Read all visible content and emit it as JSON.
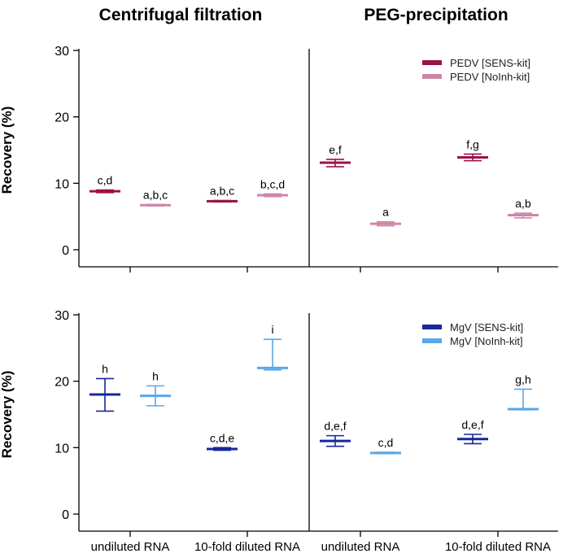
{
  "chart_data": {
    "type": "scatter",
    "column_titles": [
      "Centrifugal filtration",
      "PEG-precipitation"
    ],
    "categories": [
      "undiluted RNA",
      "10-fold diluted RNA",
      "undiluted RNA",
      "10-fold diluted RNA"
    ],
    "panels": [
      {
        "ylabel": "Recovery (%)",
        "ylim": [
          0,
          30
        ],
        "yticks": [
          "0",
          "10",
          "20",
          "30"
        ],
        "series": [
          {
            "name": "PEDV [SENS-kit]",
            "color": "#9a1249",
            "mean": [
              8.8,
              7.3,
              13.1,
              13.9
            ],
            "low": [
              8.6,
              7.2,
              12.5,
              13.4
            ],
            "high": [
              9.0,
              7.4,
              13.6,
              14.4
            ],
            "labels": [
              "c,d",
              "a,b,c",
              "e,f",
              "f,g"
            ]
          },
          {
            "name": "PEDV [NoInh-kit]",
            "color": "#cc86a8",
            "mean": [
              6.7,
              8.2,
              3.9,
              5.2
            ],
            "low": [
              6.6,
              8.0,
              3.6,
              4.8
            ],
            "high": [
              6.8,
              8.4,
              4.2,
              5.5
            ],
            "labels": [
              "a,b,c",
              "b,c,d",
              "a",
              "a,b"
            ]
          }
        ]
      },
      {
        "ylabel": "Recovery (%)",
        "ylim": [
          0,
          30
        ],
        "yticks": [
          "0",
          "10",
          "20",
          "30"
        ],
        "series": [
          {
            "name": "MgV [SENS-kit]",
            "color": "#17279b",
            "mean": [
              18.0,
              9.8,
              11.0,
              11.3
            ],
            "low": [
              15.5,
              9.6,
              10.2,
              10.6
            ],
            "high": [
              20.4,
              10.0,
              11.8,
              12.0
            ],
            "labels": [
              "h",
              "c,d,e",
              "d,e,f",
              "d,e,f"
            ]
          },
          {
            "name": "MgV [NoInh-kit]",
            "color": "#5aa7e8",
            "mean": [
              17.8,
              22.0,
              9.2,
              15.8
            ],
            "low": [
              16.3,
              21.7,
              9.1,
              15.7
            ],
            "high": [
              19.3,
              26.3,
              9.3,
              18.8
            ],
            "labels": [
              "h",
              "i",
              "c,d",
              "g,h"
            ]
          }
        ]
      }
    ]
  }
}
